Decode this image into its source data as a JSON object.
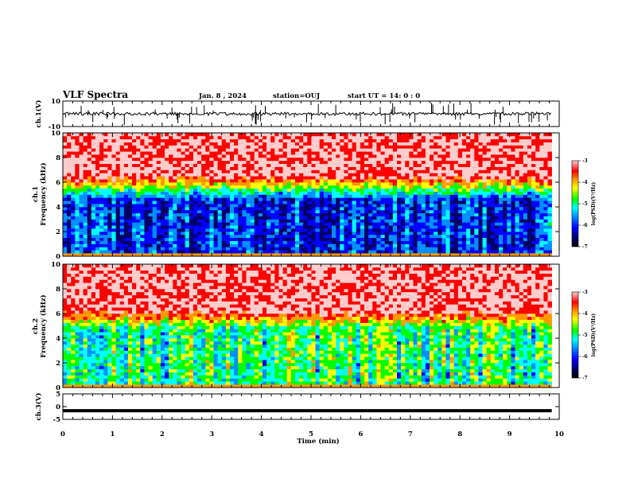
{
  "header": {
    "title": "VLF Spectra",
    "date": "Jan. 8 , 2024",
    "station": "station=OUJ",
    "start": "start UT = 14: 0 : 0"
  },
  "colors": {
    "background": "#ffffff",
    "trace": "#000000",
    "colormap": [
      "#000066",
      "#0000ff",
      "#0090ff",
      "#00ffff",
      "#00ff00",
      "#ffff00",
      "#ff9900",
      "#ff0000",
      "#ffcccc"
    ]
  },
  "chart_data": [
    {
      "type": "line",
      "panel": "ch1-waveform",
      "ylabel": "ch.1(V)",
      "ylim": [
        -10,
        10
      ],
      "yticks": [
        "10",
        "-10"
      ],
      "x_range_min": [
        0,
        9.85
      ],
      "series_level_V": 0,
      "note_values": "waveform trace near 0 V with spikes"
    },
    {
      "type": "heatmap",
      "panel": "ch1-spectrogram",
      "ylabel": "ch.1\nFrequency (kHz)",
      "ylabel_lines": [
        "ch.1",
        "Frequency (kHz)"
      ],
      "ylim": [
        0,
        10
      ],
      "yticks": [
        "0",
        "2",
        "4",
        "6",
        "8",
        "10"
      ],
      "x_range_min": [
        0,
        9.85
      ],
      "colorbar": {
        "label": "log(PSD)(V²/Hz)",
        "range": [
          -7,
          -3
        ],
        "ticks": [
          "-3",
          "-4",
          "-5",
          "-6",
          "-7"
        ]
      },
      "profile": {
        "low_band_kHz": [
          0.3,
          4.6
        ],
        "low_level": -6.3,
        "high_level": -3.4,
        "transition_kHz": 5.5
      }
    },
    {
      "type": "heatmap",
      "panel": "ch2-spectrogram",
      "ylabel_lines": [
        "ch.2",
        "Frequency (kHz)"
      ],
      "ylim": [
        0,
        10
      ],
      "yticks": [
        "0",
        "2",
        "4",
        "6",
        "8",
        "10"
      ],
      "x_range_min": [
        0,
        9.85
      ],
      "colorbar": {
        "label": "log(PSD)(V²/Hz)",
        "range": [
          -7,
          -3
        ],
        "ticks": [
          "-3",
          "-4",
          "-5",
          "-6",
          "-7"
        ]
      },
      "profile": {
        "low_band_kHz": [
          0.3,
          4.8
        ],
        "low_level": -5.2,
        "high_level": -3.4,
        "transition_kHz": 5.2
      }
    },
    {
      "type": "line",
      "panel": "ch3-waveform",
      "ylabel": "ch.3(V)",
      "ylim": [
        -5,
        5
      ],
      "yticks": [
        "5",
        "0",
        "-5"
      ],
      "x_range_min": [
        0,
        9.85
      ],
      "series_level_V": -1.6
    }
  ],
  "xaxis": {
    "label": "Time (min)",
    "range": [
      0,
      10
    ],
    "ticks": [
      "0",
      "1",
      "2",
      "3",
      "4",
      "5",
      "6",
      "7",
      "8",
      "9",
      "10"
    ]
  }
}
